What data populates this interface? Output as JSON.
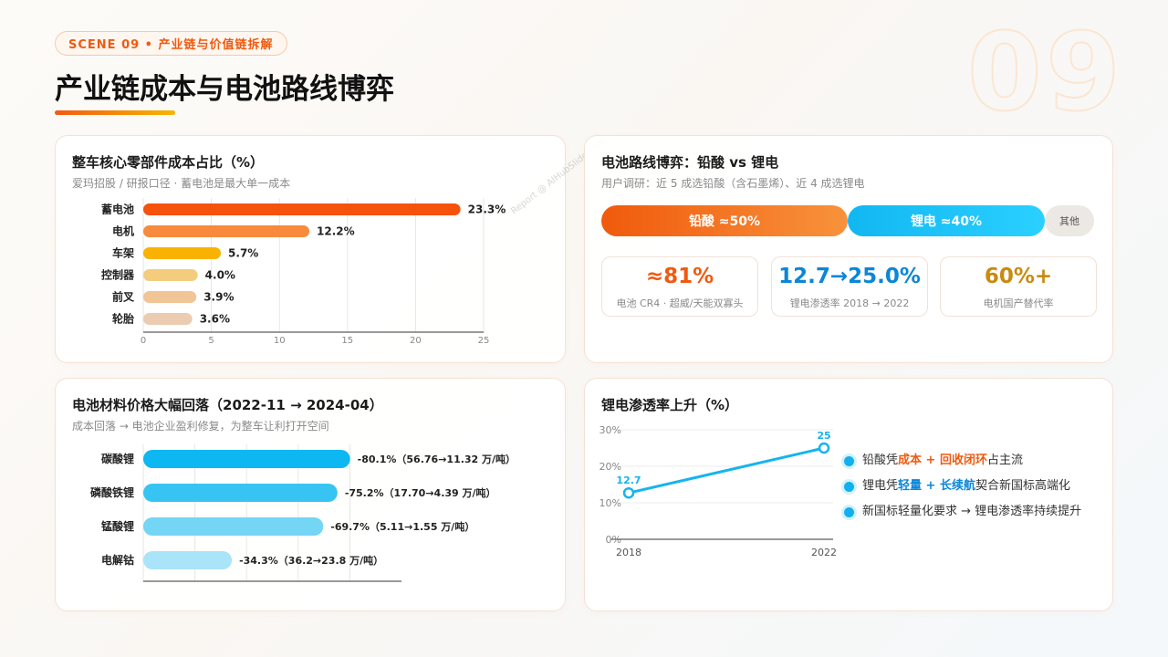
{
  "header": {
    "scene_badge": "SCENE 09 • 产业链与价值链拆解",
    "big_number": "09",
    "title": "产业链成本与电池路线博弈"
  },
  "watermark": "Report @ AIHubSlide.com",
  "card_cost": {
    "title": "整车核心零部件成本占比（%）",
    "subtitle": "爱玛招股 / 研报口径 · 蓄电池是最大单一成本"
  },
  "card_route": {
    "title": "电池路线博弈：铅酸 vs 锂电",
    "subtitle": "用户调研：近 5 成选铅酸（含石墨烯）、近 4 成选锂电",
    "split": [
      {
        "label": "铅酸 ≈50%",
        "share": 50
      },
      {
        "label": "锂电 ≈40%",
        "share": 40
      },
      {
        "label": "其他",
        "share": 10
      }
    ],
    "stats": [
      {
        "value": "≈81%",
        "label": "电池 CR4 · 超威/天能双寡头",
        "color": "#f05a10"
      },
      {
        "value": "12.7→25.0%",
        "label": "锂电渗透率 2018 → 2022",
        "color": "#0b86d8"
      },
      {
        "value": "60%+",
        "label": "电机国产替代率",
        "color": "#c98a10"
      }
    ]
  },
  "card_price": {
    "title": "电池材料价格大幅回落（2022-11 → 2024-04）",
    "subtitle": "成本回落 → 电池企业盈利修复，为整车让利打开空间"
  },
  "card_pen": {
    "title": "锂电渗透率上升（%）",
    "bullets": [
      {
        "pre": "铅酸凭",
        "h1": "成本",
        "mid": " + ",
        "h2": "回收闭环",
        "post": "占主流",
        "tone": "o"
      },
      {
        "pre": "锂电凭",
        "h1": "轻量",
        "mid": " + ",
        "h2": "长续航",
        "post": "契合新国标高端化",
        "tone": "b"
      },
      {
        "pre": "新国标轻量化要求 → 锂电渗透率持续提升",
        "h1": "",
        "mid": "",
        "h2": "",
        "post": "",
        "tone": "n"
      }
    ]
  },
  "chart_data": [
    {
      "type": "bar",
      "orientation": "horizontal",
      "categories": [
        "蓄电池",
        "电机",
        "车架",
        "控制器",
        "前叉",
        "轮胎"
      ],
      "values": [
        23.3,
        12.2,
        5.7,
        4.0,
        3.9,
        3.6
      ],
      "data_labels": [
        "23.3%",
        "12.2%",
        "5.7%",
        "4.0%",
        "3.9%",
        "3.6%"
      ],
      "colors": [
        "#f5520c",
        "#f78a3c",
        "#f9b200",
        "#f3cc7e",
        "#f1c596",
        "#ecccb0"
      ],
      "xlim": [
        0,
        25
      ],
      "x_ticks": [
        "0",
        "5",
        "10",
        "15",
        "20",
        "25"
      ],
      "grid": true
    },
    {
      "type": "bar",
      "orientation": "horizontal",
      "categories": [
        "碳酸锂",
        "磷酸铁锂",
        "锰酸锂",
        "电解钴"
      ],
      "values": [
        80.1,
        75.2,
        69.7,
        34.3
      ],
      "data_labels": [
        "-80.1%（56.76→11.32 万/吨）",
        "-75.2%（17.70→4.39 万/吨）",
        "-69.7%（5.11→1.55 万/吨）",
        "-34.3%（36.2→23.8 万/吨）"
      ],
      "colors": [
        "#0cb7f2",
        "#38c4f3",
        "#74d5f5",
        "#a9e4f8"
      ],
      "xlim": [
        0,
        100
      ],
      "x_ticks": [
        "0",
        "20",
        "40",
        "60",
        "80"
      ],
      "grid": true
    },
    {
      "type": "line",
      "x": [
        "2018",
        "2022"
      ],
      "values": [
        12.7,
        25
      ],
      "data_labels": [
        "12.7",
        "25"
      ],
      "ylim": [
        0,
        30
      ],
      "y_ticks": [
        "0%",
        "10%",
        "20%",
        "30%"
      ],
      "color": "#16b4ee",
      "grid": true
    }
  ]
}
